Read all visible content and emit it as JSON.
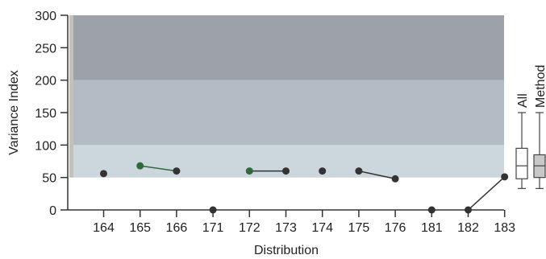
{
  "chart_data": {
    "type": "scatter",
    "title": "",
    "xlabel": "Distribution",
    "ylabel": "Variance Index",
    "ylim": [
      0,
      300
    ],
    "yticks": [
      0,
      50,
      100,
      150,
      200,
      250,
      300
    ],
    "categories": [
      "164",
      "165",
      "166",
      "171",
      "172",
      "173",
      "174",
      "175",
      "176",
      "181",
      "182",
      "183"
    ],
    "points": [
      {
        "x": "164",
        "y": 56,
        "color": "#333333"
      },
      {
        "x": "165",
        "y": 68,
        "color": "#2f6a3a"
      },
      {
        "x": "166",
        "y": 60,
        "color": "#333333"
      },
      {
        "x": "171",
        "y": 0,
        "color": "#333333"
      },
      {
        "x": "172",
        "y": 60,
        "color": "#2f6a3a"
      },
      {
        "x": "173",
        "y": 60,
        "color": "#333333"
      },
      {
        "x": "174",
        "y": 60,
        "color": "#333333"
      },
      {
        "x": "175",
        "y": 60,
        "color": "#333333"
      },
      {
        "x": "176",
        "y": 48,
        "color": "#333333"
      },
      {
        "x": "181",
        "y": 0,
        "color": "#333333"
      },
      {
        "x": "182",
        "y": 0,
        "color": "#333333"
      },
      {
        "x": "183",
        "y": 51,
        "color": "#333333"
      }
    ],
    "segments": [
      {
        "from": "165",
        "to": "166",
        "color": "#2f6a3a"
      },
      {
        "from": "172",
        "to": "173",
        "color": "#333333"
      },
      {
        "from": "175",
        "to": "176",
        "color": "#333333"
      },
      {
        "from": "182",
        "to": "183",
        "color": "#333333"
      }
    ],
    "bands": [
      {
        "from": 50,
        "to": 100,
        "color": "#ccd6dd"
      },
      {
        "from": 100,
        "to": 200,
        "color": "#b3bcc4"
      },
      {
        "from": 200,
        "to": 300,
        "color": "#9da2a8"
      }
    ],
    "boxplots": [
      {
        "label": "All",
        "min": 33,
        "q1": 48,
        "median": 68,
        "q3": 95,
        "max": 150,
        "fill": "#ffffff"
      },
      {
        "label": "Method",
        "min": 33,
        "q1": 50,
        "median": 68,
        "q3": 85,
        "max": 150,
        "fill": "#c8c8c8"
      }
    ]
  }
}
